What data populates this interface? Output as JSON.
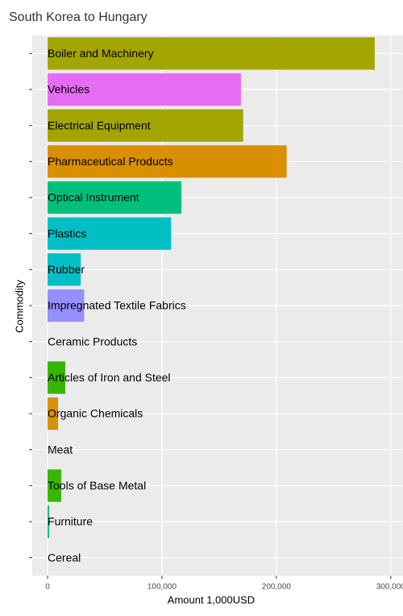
{
  "chart_data": {
    "type": "barh",
    "title": "South Korea to Hungary",
    "x_label": "Amount 1,000USD",
    "y_label": "Commodity",
    "categories": [
      "Boiler and Machinery",
      "Vehicles",
      "Electrical Equipment",
      "Pharmaceutical Products",
      "Optical Instrument",
      "Plastics",
      "Rubber",
      "Impregnated Textile Fabrics",
      "Ceramic Products",
      "Articles of Iron and Steel",
      "Organic Chemicals",
      "Meat",
      "Tools of Base Metal",
      "Furniture",
      "Cereal"
    ],
    "values": [
      286000,
      169000,
      171000,
      209000,
      117000,
      108000,
      29000,
      32000,
      0,
      15500,
      9200,
      0,
      12000,
      1400,
      0
    ],
    "colors": [
      "#a3a500",
      "#e76bf3",
      "#a3a500",
      "#d89000",
      "#00bf7d",
      "#00bfc4",
      "#00bfc4",
      "#9590ff",
      "#00b0f6",
      "#39b600",
      "#d89000",
      "#f8766d",
      "#39b600",
      "#00bf7d",
      "#e7861b"
    ],
    "xlim": [
      -13400,
      310000
    ],
    "xticks": [
      0,
      {
        "value": 100000,
        "label": "100,000"
      },
      {
        "value": 200000,
        "label": "200,000"
      },
      {
        "value": 300000,
        "label": "300,000"
      }
    ],
    "grid": true
  }
}
